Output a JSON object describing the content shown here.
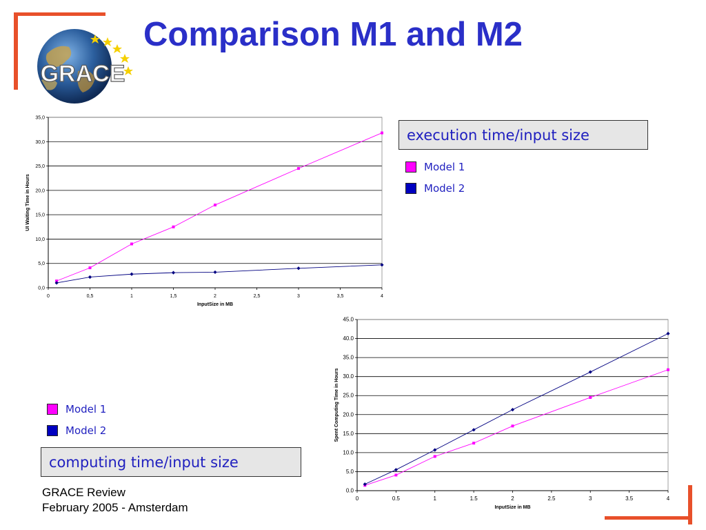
{
  "slide": {
    "title": "Comparison M1 and M2",
    "logo_text": "GRACE",
    "footer_line1": "GRACE Review",
    "footer_line2": "February 2005 - Amsterdam",
    "accent_color": "#e8502a",
    "title_color": "#2a2fc8"
  },
  "caption_top": "execution time/input size",
  "caption_bottom": "computing time/input size",
  "legend_top": [
    {
      "label": "Model 1",
      "color": "#ff00ff"
    },
    {
      "label": "Model 2",
      "color": "#0000c0"
    }
  ],
  "legend_bottom": [
    {
      "label": "Model 1",
      "color": "#ff00ff"
    },
    {
      "label": "Model 2",
      "color": "#0000c0"
    }
  ],
  "chart_data": [
    {
      "type": "line",
      "xlabel": "InputSize in MB",
      "ylabel": "UI Waiting Time in Hours",
      "xlim": [
        0,
        4
      ],
      "ylim": [
        0,
        35
      ],
      "x_ticks": [
        "0",
        "0,5",
        "1",
        "1,5",
        "2",
        "2,5",
        "3",
        "3,5",
        "4"
      ],
      "y_ticks": [
        "0,0",
        "5,0",
        "10,0",
        "15,0",
        "20,0",
        "25,0",
        "30,0",
        "35,0"
      ],
      "grid": "horizontal",
      "series": [
        {
          "name": "Model 1",
          "color": "#ff00ff",
          "x": [
            0.1,
            0.5,
            1,
            1.5,
            2,
            3,
            4
          ],
          "y": [
            1.4,
            4.1,
            9.0,
            12.5,
            17.0,
            24.5,
            31.8
          ]
        },
        {
          "name": "Model 2",
          "color": "#000080",
          "x": [
            0.1,
            0.5,
            1,
            1.5,
            2,
            3,
            4
          ],
          "y": [
            1.0,
            2.2,
            2.8,
            3.1,
            3.2,
            4.0,
            4.7
          ]
        }
      ]
    },
    {
      "type": "line",
      "xlabel": "InputSize in MB",
      "ylabel": "Spent Computing Time in Hours",
      "xlim": [
        0,
        4
      ],
      "ylim": [
        0,
        45
      ],
      "x_ticks": [
        "0",
        "0.5",
        "1",
        "1.5",
        "2",
        "2.5",
        "3",
        "3.5",
        "4"
      ],
      "y_ticks": [
        "0.0",
        "5.0",
        "10.0",
        "15.0",
        "20.0",
        "25.0",
        "30.0",
        "35.0",
        "40.0",
        "45.0"
      ],
      "grid": "horizontal",
      "series": [
        {
          "name": "Model 1",
          "color": "#ff00ff",
          "x": [
            0.1,
            0.5,
            1,
            1.5,
            2,
            3,
            4
          ],
          "y": [
            1.4,
            4.1,
            9.0,
            12.5,
            17.0,
            24.5,
            31.8
          ]
        },
        {
          "name": "Model 2",
          "color": "#000080",
          "x": [
            0.1,
            0.5,
            1,
            1.5,
            2,
            3,
            4
          ],
          "y": [
            1.7,
            5.5,
            10.7,
            16.0,
            21.3,
            31.2,
            41.3
          ]
        }
      ]
    }
  ]
}
